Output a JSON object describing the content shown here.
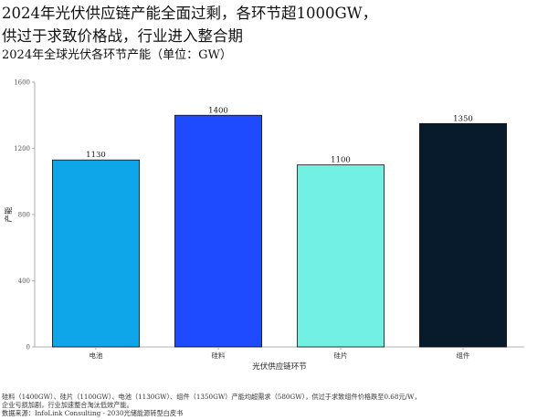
{
  "header": {
    "title_line1": "2024年光伏供应链产能全面过剩，各环节超1000GW，",
    "title_line2": "供过于求致价格战，行业进入整合期",
    "subtitle": "2024年全球光伏各环节产能（单位：GW）"
  },
  "chart_data": {
    "type": "bar",
    "categories": [
      "电池",
      "硅料",
      "硅片",
      "组件"
    ],
    "values": [
      1130,
      1400,
      1100,
      1350
    ],
    "colors": [
      "#0ea5e9",
      "#1e4bff",
      "#72f0e4",
      "#071b2c"
    ],
    "xlabel": "光伏供应链环节",
    "ylabel": "产能",
    "ylim": [
      0,
      1600
    ],
    "yticks": [
      0,
      400,
      800,
      1200,
      1600
    ],
    "grid": false,
    "legend": "none"
  },
  "notes": {
    "line1": "硅料（1400GW）、硅片（1100GW）、电池（1130GW）、组件（1350GW）产能均超需求（580GW），供过于求致组件价格跌至0.68元/W，",
    "line2": "企业亏损加剧，行业加速整合淘汰低效产能。",
    "source": "数据来源：InfoLink Consulting - 2030光储能源转型白皮书"
  }
}
